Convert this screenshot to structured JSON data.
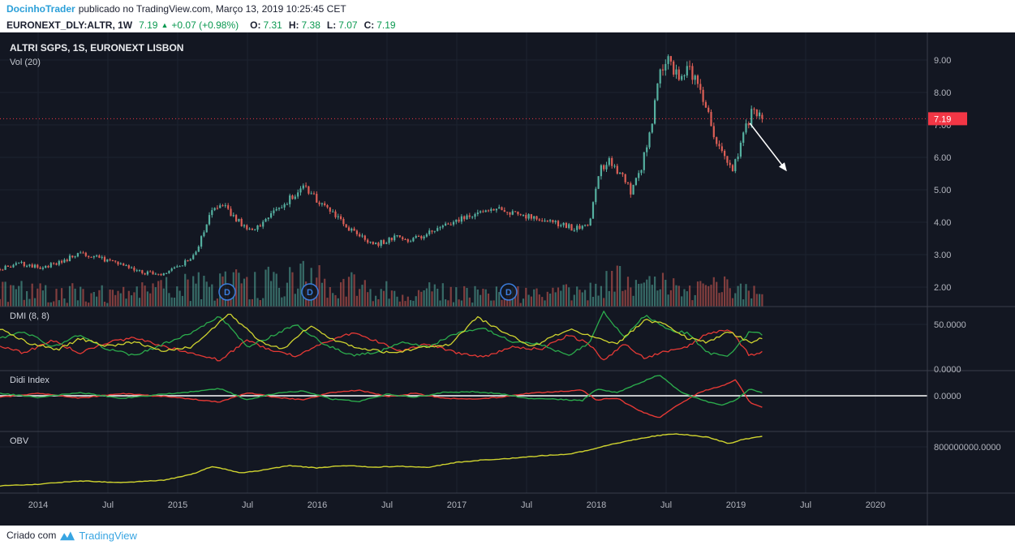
{
  "attribution": {
    "username": "DocinhoTrader",
    "text": "publicado no TradingView.com, Março 13, 2019 10:25:45 CET"
  },
  "symbol_header": {
    "symbol": "EURONEXT_DLY:ALTR, 1W",
    "price": "7.19",
    "direction_icon": "▲",
    "change": "+0.07 (+0.98%)",
    "ohlc": [
      {
        "label": "O:",
        "value": "7.31"
      },
      {
        "label": "H:",
        "value": "7.38"
      },
      {
        "label": "L:",
        "value": "7.07"
      },
      {
        "label": "C:",
        "value": "7.19"
      }
    ]
  },
  "footer": {
    "created_with": "Criado com",
    "brand": "TradingView"
  },
  "ui_colors": {
    "username": "#2a9fd8",
    "positive": "#0a9950",
    "brand_blue": "#38a5e2"
  },
  "chart_data": {
    "type": "candlestick",
    "title": "ALTRI SGPS, 1S, EURONEXT LISBON",
    "volume_label": "Vol (20)",
    "seed": 7,
    "colors": {
      "background": "#131722",
      "grid": "#1d2330",
      "separator": "#3a3e4a",
      "axis_text": "#b2b5be",
      "up": "#55b0a0",
      "down": "#dd5f56",
      "last_price": "#f23645",
      "adx": "#cfd32f",
      "plus_di": "#2bab4c",
      "minus_di": "#e53935",
      "obv": "#cfd32f",
      "marker": "#3b7ddd",
      "arrow": "#ffffff"
    },
    "time_axis": {
      "start": 2013.727,
      "end": 2020.37,
      "data_end": 2019.19,
      "ticks": [
        {
          "t": 2014,
          "label": "2014"
        },
        {
          "t": 2014.5,
          "label": "Jul"
        },
        {
          "t": 2015,
          "label": "2015"
        },
        {
          "t": 2015.5,
          "label": "Jul"
        },
        {
          "t": 2016,
          "label": "2016"
        },
        {
          "t": 2016.5,
          "label": "Jul"
        },
        {
          "t": 2017,
          "label": "2017"
        },
        {
          "t": 2017.5,
          "label": "Jul"
        },
        {
          "t": 2018,
          "label": "2018"
        },
        {
          "t": 2018.5,
          "label": "Jul"
        },
        {
          "t": 2019,
          "label": "2019"
        },
        {
          "t": 2019.5,
          "label": "Jul"
        },
        {
          "t": 2020,
          "label": "2020"
        }
      ]
    },
    "price_axis": {
      "min": 1.8,
      "max": 9.6,
      "last_price": 7.19,
      "last_price_label": "7.19",
      "ticks": [
        {
          "v": 9,
          "label": "9.00"
        },
        {
          "v": 8,
          "label": "8.00"
        },
        {
          "v": 7,
          "label": "7.00"
        },
        {
          "v": 6,
          "label": "6.00"
        },
        {
          "v": 5,
          "label": "5.00"
        },
        {
          "v": 4,
          "label": "4.00"
        },
        {
          "v": 3,
          "label": "3.00"
        },
        {
          "v": 2,
          "label": "2.00"
        }
      ]
    },
    "last_candle": {
      "o": 7.31,
      "h": 7.38,
      "l": 7.07,
      "c": 7.19
    },
    "price_anchors": [
      [
        2013.73,
        2.55
      ],
      [
        2013.85,
        2.75
      ],
      [
        2014.0,
        2.6
      ],
      [
        2014.15,
        2.75
      ],
      [
        2014.3,
        3.05
      ],
      [
        2014.45,
        2.9
      ],
      [
        2014.6,
        2.65
      ],
      [
        2014.75,
        2.45
      ],
      [
        2014.9,
        2.4
      ],
      [
        2015.0,
        2.6
      ],
      [
        2015.12,
        2.95
      ],
      [
        2015.25,
        4.4
      ],
      [
        2015.33,
        4.6
      ],
      [
        2015.42,
        4.05
      ],
      [
        2015.55,
        3.75
      ],
      [
        2015.68,
        4.3
      ],
      [
        2015.8,
        4.7
      ],
      [
        2015.9,
        5.15
      ],
      [
        2015.97,
        4.85
      ],
      [
        2016.05,
        4.45
      ],
      [
        2016.15,
        4.1
      ],
      [
        2016.3,
        3.55
      ],
      [
        2016.42,
        3.3
      ],
      [
        2016.55,
        3.55
      ],
      [
        2016.68,
        3.45
      ],
      [
        2016.8,
        3.7
      ],
      [
        2016.95,
        4.0
      ],
      [
        2017.1,
        4.25
      ],
      [
        2017.25,
        4.45
      ],
      [
        2017.4,
        4.3
      ],
      [
        2017.55,
        4.15
      ],
      [
        2017.7,
        4.0
      ],
      [
        2017.85,
        3.8
      ],
      [
        2017.95,
        4.0
      ],
      [
        2018.02,
        5.6
      ],
      [
        2018.1,
        5.95
      ],
      [
        2018.18,
        5.4
      ],
      [
        2018.25,
        4.95
      ],
      [
        2018.32,
        5.6
      ],
      [
        2018.4,
        7.2
      ],
      [
        2018.46,
        8.6
      ],
      [
        2018.51,
        9.1
      ],
      [
        2018.56,
        8.6
      ],
      [
        2018.6,
        8.3
      ],
      [
        2018.66,
        8.8
      ],
      [
        2018.72,
        8.3
      ],
      [
        2018.78,
        7.6
      ],
      [
        2018.85,
        6.6
      ],
      [
        2018.92,
        5.9
      ],
      [
        2018.97,
        5.6
      ],
      [
        2019.03,
        6.3
      ],
      [
        2019.09,
        7.1
      ],
      [
        2019.13,
        7.5
      ],
      [
        2019.17,
        7.2
      ],
      [
        2019.19,
        7.19
      ]
    ],
    "volume_envelope_rel": [
      [
        2013.73,
        0.58
      ],
      [
        2014.2,
        0.5
      ],
      [
        2014.6,
        0.42
      ],
      [
        2015.0,
        0.67
      ],
      [
        2015.3,
        0.75
      ],
      [
        2015.9,
        1.0
      ],
      [
        2016.2,
        0.75
      ],
      [
        2016.6,
        0.5
      ],
      [
        2017.0,
        0.5
      ],
      [
        2017.5,
        0.42
      ],
      [
        2017.95,
        0.5
      ],
      [
        2018.05,
        0.92
      ],
      [
        2018.4,
        0.67
      ],
      [
        2018.55,
        0.75
      ],
      [
        2018.8,
        0.58
      ],
      [
        2019.0,
        0.75
      ],
      [
        2019.19,
        0.5
      ]
    ],
    "dividend_markers": {
      "label": "D",
      "times": [
        2015.355,
        2015.948,
        2017.372
      ]
    },
    "arrow": {
      "t1": 2019.1,
      "p1": 7.05,
      "t2": 2019.36,
      "p2": 5.6
    },
    "panes": {
      "dmi": {
        "label": "DMI (8, 8)",
        "axis_labels": [
          {
            "v": 50,
            "label": "50.0000"
          },
          {
            "v": 0,
            "label": "0.0000"
          }
        ],
        "adx": [
          [
            2013.73,
            45
          ],
          [
            2013.95,
            28
          ],
          [
            2014.15,
            22
          ],
          [
            2014.3,
            34
          ],
          [
            2014.5,
            26
          ],
          [
            2014.7,
            30
          ],
          [
            2014.9,
            20
          ],
          [
            2015.1,
            25
          ],
          [
            2015.37,
            62
          ],
          [
            2015.6,
            30
          ],
          [
            2015.75,
            22
          ],
          [
            2015.95,
            48
          ],
          [
            2016.15,
            30
          ],
          [
            2016.35,
            22
          ],
          [
            2016.55,
            18
          ],
          [
            2016.75,
            24
          ],
          [
            2016.95,
            28
          ],
          [
            2017.15,
            58
          ],
          [
            2017.35,
            40
          ],
          [
            2017.55,
            25
          ],
          [
            2017.8,
            45
          ],
          [
            2018.0,
            35
          ],
          [
            2018.15,
            28
          ],
          [
            2018.35,
            55
          ],
          [
            2018.5,
            50
          ],
          [
            2018.65,
            35
          ],
          [
            2018.8,
            30
          ],
          [
            2018.95,
            42
          ],
          [
            2019.1,
            30
          ],
          [
            2019.2,
            35
          ]
        ],
        "plus_di": [
          [
            2013.73,
            35
          ],
          [
            2013.9,
            42
          ],
          [
            2014.1,
            25
          ],
          [
            2014.3,
            38
          ],
          [
            2014.5,
            22
          ],
          [
            2014.7,
            15
          ],
          [
            2014.9,
            28
          ],
          [
            2015.1,
            40
          ],
          [
            2015.3,
            60
          ],
          [
            2015.5,
            25
          ],
          [
            2015.65,
            35
          ],
          [
            2015.85,
            50
          ],
          [
            2016.05,
            28
          ],
          [
            2016.25,
            15
          ],
          [
            2016.45,
            20
          ],
          [
            2016.6,
            30
          ],
          [
            2016.8,
            25
          ],
          [
            2017.0,
            40
          ],
          [
            2017.2,
            45
          ],
          [
            2017.4,
            30
          ],
          [
            2017.6,
            28
          ],
          [
            2017.8,
            15
          ],
          [
            2017.95,
            30
          ],
          [
            2018.05,
            65
          ],
          [
            2018.2,
            35
          ],
          [
            2018.35,
            60
          ],
          [
            2018.5,
            45
          ],
          [
            2018.65,
            40
          ],
          [
            2018.8,
            18
          ],
          [
            2018.95,
            15
          ],
          [
            2019.1,
            42
          ],
          [
            2019.2,
            38
          ]
        ],
        "minus_di": [
          [
            2013.73,
            25
          ],
          [
            2013.9,
            18
          ],
          [
            2014.1,
            32
          ],
          [
            2014.3,
            18
          ],
          [
            2014.5,
            30
          ],
          [
            2014.7,
            35
          ],
          [
            2014.9,
            25
          ],
          [
            2015.1,
            18
          ],
          [
            2015.3,
            10
          ],
          [
            2015.5,
            32
          ],
          [
            2015.65,
            22
          ],
          [
            2015.85,
            14
          ],
          [
            2016.05,
            30
          ],
          [
            2016.25,
            40
          ],
          [
            2016.45,
            30
          ],
          [
            2016.6,
            20
          ],
          [
            2016.8,
            28
          ],
          [
            2017.0,
            18
          ],
          [
            2017.2,
            14
          ],
          [
            2017.4,
            25
          ],
          [
            2017.6,
            22
          ],
          [
            2017.8,
            38
          ],
          [
            2017.95,
            28
          ],
          [
            2018.05,
            10
          ],
          [
            2018.2,
            28
          ],
          [
            2018.35,
            12
          ],
          [
            2018.5,
            20
          ],
          [
            2018.65,
            25
          ],
          [
            2018.8,
            40
          ],
          [
            2018.95,
            45
          ],
          [
            2019.1,
            15
          ],
          [
            2019.2,
            20
          ]
        ]
      },
      "didi": {
        "label": "Didi Index",
        "axis_labels": [
          {
            "v": 0,
            "label": "0.0000"
          }
        ],
        "fast_green": [
          [
            2013.73,
            0.3
          ],
          [
            2014.0,
            -0.2
          ],
          [
            2014.3,
            0.4
          ],
          [
            2014.6,
            -0.3
          ],
          [
            2014.9,
            0.2
          ],
          [
            2015.1,
            0.5
          ],
          [
            2015.3,
            0.9
          ],
          [
            2015.5,
            -0.5
          ],
          [
            2015.7,
            0.3
          ],
          [
            2015.9,
            0.6
          ],
          [
            2016.1,
            -0.4
          ],
          [
            2016.3,
            -0.7
          ],
          [
            2016.5,
            0.2
          ],
          [
            2016.7,
            -0.2
          ],
          [
            2016.9,
            0.4
          ],
          [
            2017.1,
            0.5
          ],
          [
            2017.3,
            0.3
          ],
          [
            2017.5,
            -0.3
          ],
          [
            2017.7,
            -0.4
          ],
          [
            2017.9,
            -0.6
          ],
          [
            2018.0,
            0.8
          ],
          [
            2018.15,
            0.4
          ],
          [
            2018.3,
            1.5
          ],
          [
            2018.45,
            2.6
          ],
          [
            2018.6,
            0.5
          ],
          [
            2018.75,
            -0.5
          ],
          [
            2018.9,
            -1.2
          ],
          [
            2019.0,
            -0.5
          ],
          [
            2019.1,
            0.8
          ],
          [
            2019.2,
            0.3
          ]
        ],
        "slow_red": [
          [
            2013.73,
            -0.2
          ],
          [
            2014.0,
            0.3
          ],
          [
            2014.3,
            -0.3
          ],
          [
            2014.6,
            0.3
          ],
          [
            2014.9,
            -0.1
          ],
          [
            2015.1,
            -0.4
          ],
          [
            2015.3,
            -0.8
          ],
          [
            2015.5,
            0.4
          ],
          [
            2015.7,
            -0.2
          ],
          [
            2015.9,
            -0.5
          ],
          [
            2016.1,
            0.4
          ],
          [
            2016.3,
            0.7
          ],
          [
            2016.5,
            -0.1
          ],
          [
            2016.7,
            0.3
          ],
          [
            2016.9,
            -0.3
          ],
          [
            2017.1,
            -0.4
          ],
          [
            2017.3,
            -0.2
          ],
          [
            2017.5,
            0.3
          ],
          [
            2017.7,
            0.5
          ],
          [
            2017.9,
            0.7
          ],
          [
            2018.0,
            -0.5
          ],
          [
            2018.15,
            -0.3
          ],
          [
            2018.3,
            -1.8
          ],
          [
            2018.45,
            -2.7
          ],
          [
            2018.6,
            -1.0
          ],
          [
            2018.75,
            0.5
          ],
          [
            2018.9,
            1.2
          ],
          [
            2019.0,
            2.0
          ],
          [
            2019.1,
            -0.8
          ],
          [
            2019.2,
            -1.5
          ]
        ]
      },
      "obv": {
        "label": "OBV",
        "unit": "millions",
        "axis_labels": [
          {
            "v": 800,
            "label": "800000000.0000"
          }
        ],
        "values": [
          [
            2013.73,
            235
          ],
          [
            2014.0,
            259
          ],
          [
            2014.3,
            306
          ],
          [
            2014.6,
            282
          ],
          [
            2014.9,
            318
          ],
          [
            2015.1,
            400
          ],
          [
            2015.25,
            518
          ],
          [
            2015.45,
            424
          ],
          [
            2015.6,
            459
          ],
          [
            2015.8,
            529
          ],
          [
            2016.0,
            494
          ],
          [
            2016.2,
            529
          ],
          [
            2016.4,
            506
          ],
          [
            2016.6,
            518
          ],
          [
            2016.8,
            506
          ],
          [
            2017.0,
            576
          ],
          [
            2017.2,
            612
          ],
          [
            2017.4,
            635
          ],
          [
            2017.6,
            671
          ],
          [
            2017.8,
            694
          ],
          [
            2017.95,
            753
          ],
          [
            2018.1,
            835
          ],
          [
            2018.25,
            894
          ],
          [
            2018.4,
            953
          ],
          [
            2018.55,
            988
          ],
          [
            2018.65,
            976
          ],
          [
            2018.8,
            941
          ],
          [
            2018.95,
            847
          ],
          [
            2019.05,
            906
          ],
          [
            2019.19,
            953
          ]
        ]
      }
    }
  }
}
